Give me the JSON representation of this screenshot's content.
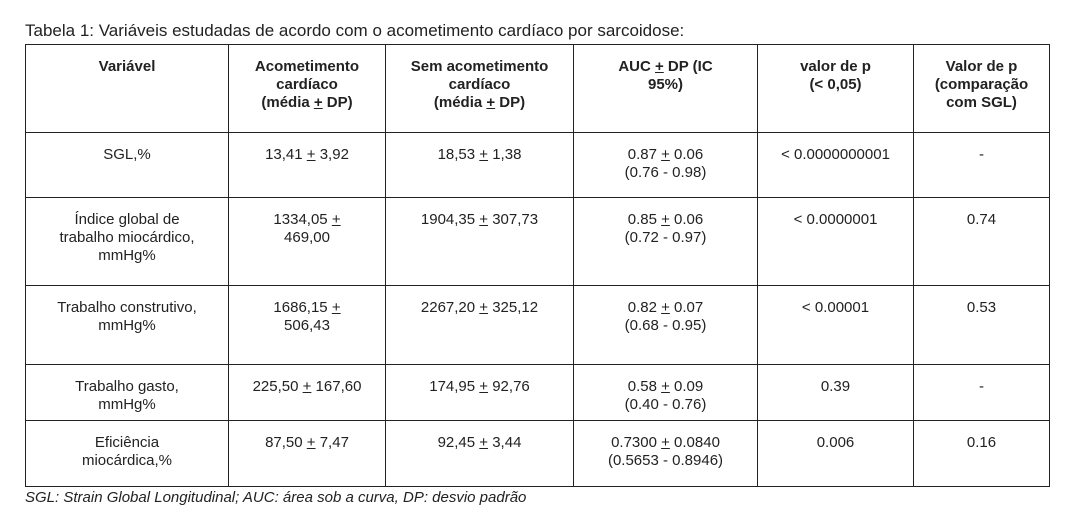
{
  "caption": "Tabela 1: Variáveis estudadas de acordo com o acometimento cardíaco por sarcoidose:",
  "table": {
    "header": [
      "Variável",
      "Acometimento\ncardíaco\n(média + DP)",
      "Sem acometimento\ncardíaco\n(média + DP)",
      "AUC + DP (IC\n95%)",
      "valor de p\n(< 0,05)",
      "Valor de p\n(comparação\ncom SGL)"
    ],
    "rows": [
      [
        "SGL,%",
        "13,41 + 3,92",
        "18,53 + 1,38",
        "0.87 + 0.06\n(0.76 - 0.98)",
        "< 0.0000000001",
        "-"
      ],
      [
        "Índice global de\ntrabalho miocárdico,\nmmHg%",
        "1334,05 +\n469,00",
        "1904,35 + 307,73",
        "0.85 + 0.06\n(0.72 - 0.97)",
        "< 0.0000001",
        "0.74"
      ],
      [
        "Trabalho construtivo,\nmmHg%",
        "1686,15 +\n506,43",
        "2267,20 + 325,12",
        "0.82 + 0.07\n(0.68 - 0.95)",
        "< 0.00001",
        "0.53"
      ],
      [
        "Trabalho gasto,\nmmHg%",
        "225,50 + 167,60",
        "174,95 + 92,76",
        "0.58 + 0.09\n(0.40 - 0.76)",
        "0.39",
        "-"
      ],
      [
        "Eficiência\nmiocárdica,%",
        "87,50 + 7,47",
        "92,45 + 3,44",
        "0.7300 + 0.0840\n(0.5653 - 0.8946)",
        "0.006",
        "0.16"
      ]
    ]
  },
  "footnote": "SGL: Strain Global Longitudinal; AUC: área sob a curva, DP: desvio padrão"
}
